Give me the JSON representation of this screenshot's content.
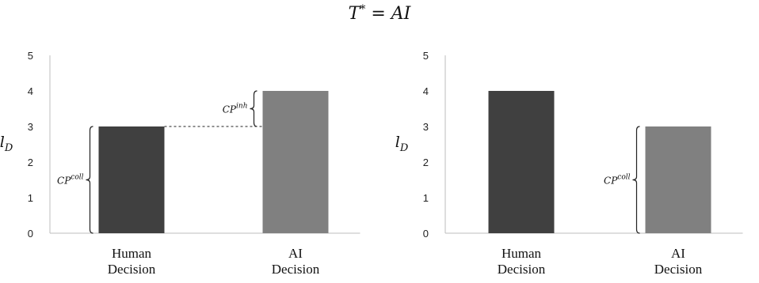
{
  "figure": {
    "title_base": "T",
    "title_sup": "*",
    "title_rest": " = AI"
  },
  "chart_data": [
    {
      "type": "bar",
      "title": "",
      "ylabel_base": "l",
      "ylabel_sub": "D",
      "xlabel": "",
      "ylim": [
        0,
        5
      ],
      "yticks": [
        "0",
        "1",
        "2",
        "3",
        "4",
        "5"
      ],
      "grid": false,
      "categories": [
        [
          "Human",
          "Decision"
        ],
        [
          "AI",
          "Decision"
        ]
      ],
      "values": [
        3,
        4
      ],
      "bar_colors": [
        "#404040",
        "#808080"
      ],
      "annotations": [
        {
          "type": "brace",
          "from": 0,
          "to": 3,
          "label_base": "CP",
          "label_sup": "coll",
          "side": "left-of-bar-1"
        },
        {
          "type": "brace",
          "from": 3,
          "to": 4,
          "label_base": "CP",
          "label_sup": "inh",
          "side": "left-of-bar-2"
        },
        {
          "type": "dashed-line",
          "y": 3,
          "from_bar": 1,
          "to_bar": 2
        }
      ]
    },
    {
      "type": "bar",
      "title": "",
      "ylabel_base": "l",
      "ylabel_sub": "D",
      "xlabel": "",
      "ylim": [
        0,
        5
      ],
      "yticks": [
        "0",
        "1",
        "2",
        "3",
        "4",
        "5"
      ],
      "grid": false,
      "categories": [
        [
          "Human",
          "Decision"
        ],
        [
          "AI",
          "Decision"
        ]
      ],
      "values": [
        4,
        3
      ],
      "bar_colors": [
        "#404040",
        "#808080"
      ],
      "annotations": [
        {
          "type": "brace",
          "from": 0,
          "to": 3,
          "label_base": "CP",
          "label_sup": "coll",
          "side": "left-of-bar-2"
        }
      ]
    }
  ]
}
